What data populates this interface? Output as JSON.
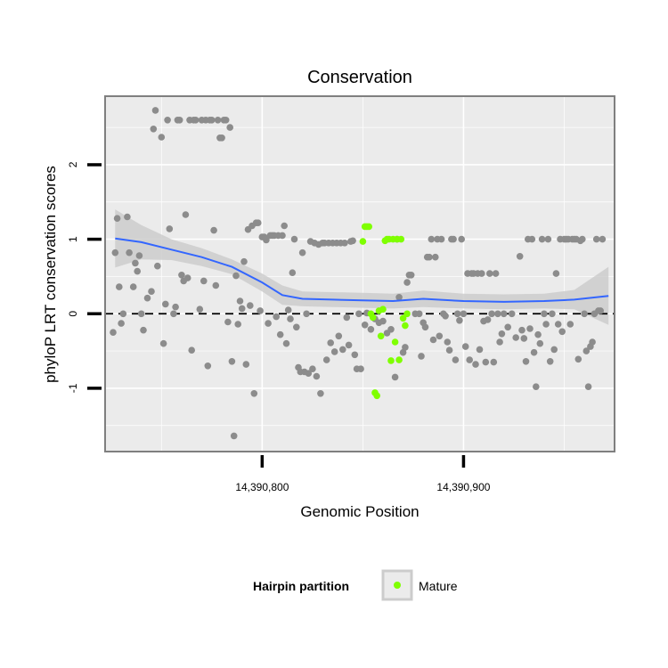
{
  "chart_data": {
    "type": "scatter",
    "title": "Conservation",
    "xlabel": "Genomic Position",
    "ylabel": "phyloP LRT conservation scores",
    "xlim": [
      14390722,
      14390975
    ],
    "ylim": [
      -1.85,
      2.92
    ],
    "x_ticks": [
      {
        "value": 14390800,
        "label": "14,390,800"
      },
      {
        "value": 14390900,
        "label": "14,390,900"
      }
    ],
    "y_ticks": [
      {
        "value": -1,
        "label": "-1"
      },
      {
        "value": 0,
        "label": "0"
      },
      {
        "value": 1,
        "label": "1"
      },
      {
        "value": 2,
        "label": "2"
      }
    ],
    "grid": true,
    "reference_line": {
      "y": 0,
      "style": "dashed"
    },
    "colors": {
      "panel_background": "#ebebeb",
      "grid": "#ffffff",
      "panel_border": "#7f7f7f",
      "other_points": "#8c8c8c",
      "mature_points": "#7fff00",
      "smooth_line": "#3366ff",
      "confidence_band": "#cccccc"
    },
    "legend": {
      "title": "Hairpin partition",
      "position": "bottom",
      "entries": [
        {
          "label": "Mature",
          "color": "#7fff00"
        }
      ]
    },
    "series": [
      {
        "color": "#8c8c8c",
        "points": [
          [
            14390733,
            1.3
          ],
          [
            14390734,
            0.82
          ],
          [
            14390736,
            0.36
          ],
          [
            14390738,
            0.57
          ],
          [
            14390740,
            0.0
          ],
          [
            14390741,
            -0.22
          ],
          [
            14390743,
            0.21
          ],
          [
            14390745,
            0.3
          ],
          [
            14390746,
            2.48
          ],
          [
            14390747,
            2.73
          ],
          [
            14390748,
            0.64
          ],
          [
            14390750,
            2.37
          ],
          [
            14390751,
            -0.4
          ],
          [
            14390752,
            0.13
          ],
          [
            14390753,
            2.6
          ],
          [
            14390754,
            1.14
          ],
          [
            14390756,
            0.0
          ],
          [
            14390757,
            0.09
          ],
          [
            14390758,
            2.6
          ],
          [
            14390759,
            2.6
          ],
          [
            14390760,
            0.52
          ],
          [
            14390761,
            0.44
          ],
          [
            14390762,
            1.33
          ],
          [
            14390763,
            0.48
          ],
          [
            14390764,
            2.6
          ],
          [
            14390765,
            -0.49
          ],
          [
            14390766,
            2.6
          ],
          [
            14390767,
            2.6
          ],
          [
            14390769,
            0.06
          ],
          [
            14390770,
            2.6
          ],
          [
            14390771,
            0.44
          ],
          [
            14390772,
            2.6
          ],
          [
            14390773,
            -0.7
          ],
          [
            14390774,
            2.6
          ],
          [
            14390775,
            2.6
          ],
          [
            14390776,
            1.12
          ],
          [
            14390777,
            0.38
          ],
          [
            14390778,
            2.6
          ],
          [
            14390779,
            2.36
          ],
          [
            14390780,
            2.36
          ],
          [
            14390781,
            2.6
          ],
          [
            14390782,
            2.6
          ],
          [
            14390783,
            -0.11
          ],
          [
            14390784,
            2.5
          ],
          [
            14390785,
            -0.64
          ],
          [
            14390786,
            -1.64
          ],
          [
            14390787,
            0.51
          ],
          [
            14390788,
            -0.14
          ],
          [
            14390789,
            0.17
          ],
          [
            14390790,
            0.07
          ],
          [
            14390791,
            0.7
          ],
          [
            14390792,
            -0.68
          ],
          [
            14390793,
            1.13
          ],
          [
            14390794,
            0.11
          ],
          [
            14390795,
            1.18
          ],
          [
            14390796,
            -1.07
          ],
          [
            14390797,
            1.22
          ],
          [
            14390798,
            1.22
          ],
          [
            14390799,
            0.04
          ],
          [
            14390800,
            1.03
          ],
          [
            14390801,
            1.03
          ],
          [
            14390802,
            0.99
          ],
          [
            14390803,
            -0.13
          ],
          [
            14390804,
            1.05
          ],
          [
            14390805,
            1.05
          ],
          [
            14390806,
            1.05
          ],
          [
            14390807,
            -0.04
          ],
          [
            14390808,
            1.05
          ],
          [
            14390809,
            -0.28
          ],
          [
            14390810,
            1.05
          ],
          [
            14390811,
            1.18
          ],
          [
            14390812,
            -0.4
          ],
          [
            14390813,
            0.05
          ],
          [
            14390814,
            -0.07
          ],
          [
            14390815,
            0.55
          ],
          [
            14390816,
            1.0
          ],
          [
            14390817,
            -0.18
          ],
          [
            14390818,
            -0.72
          ],
          [
            14390819,
            -0.78
          ],
          [
            14390820,
            0.82
          ],
          [
            14390821,
            -0.78
          ],
          [
            14390822,
            0.0
          ],
          [
            14390823,
            -0.8
          ],
          [
            14390824,
            0.97
          ],
          [
            14390825,
            -0.74
          ],
          [
            14390826,
            0.95
          ],
          [
            14390827,
            -0.84
          ],
          [
            14390828,
            0.93
          ],
          [
            14390829,
            -1.07
          ],
          [
            14390830,
            0.95
          ],
          [
            14390831,
            0.95
          ],
          [
            14390832,
            -0.62
          ],
          [
            14390833,
            0.95
          ],
          [
            14390834,
            -0.39
          ],
          [
            14390835,
            0.95
          ],
          [
            14390836,
            -0.51
          ],
          [
            14390837,
            0.95
          ],
          [
            14390838,
            -0.3
          ],
          [
            14390839,
            0.95
          ],
          [
            14390840,
            -0.48
          ],
          [
            14390841,
            0.95
          ],
          [
            14390842,
            -0.05
          ],
          [
            14390843,
            -0.42
          ],
          [
            14390844,
            0.97
          ],
          [
            14390845,
            0.98
          ],
          [
            14390846,
            -0.55
          ],
          [
            14390847,
            -0.74
          ],
          [
            14390848,
            0.0
          ],
          [
            14390849,
            -0.74
          ],
          [
            14390851,
            -0.15
          ],
          [
            14390852,
            0.01
          ],
          [
            14390854,
            -0.21
          ],
          [
            14390856,
            -0.07
          ],
          [
            14390858,
            -0.12
          ],
          [
            14390860,
            -0.1
          ],
          [
            14390862,
            -0.26
          ],
          [
            14390864,
            -0.21
          ],
          [
            14390866,
            -0.85
          ],
          [
            14390867,
            1.0
          ],
          [
            14390868,
            0.22
          ],
          [
            14390870,
            -0.52
          ],
          [
            14390871,
            -0.45
          ],
          [
            14390872,
            0.42
          ],
          [
            14390873,
            0.52
          ],
          [
            14390874,
            0.52
          ],
          [
            14390876,
            0.0
          ],
          [
            14390878,
            0.0
          ],
          [
            14390879,
            -0.57
          ],
          [
            14390880,
            -0.12
          ],
          [
            14390881,
            -0.18
          ],
          [
            14390882,
            0.76
          ],
          [
            14390883,
            0.76
          ],
          [
            14390884,
            1.0
          ],
          [
            14390885,
            -0.35
          ],
          [
            14390886,
            0.76
          ],
          [
            14390887,
            1.0
          ],
          [
            14390888,
            -0.3
          ],
          [
            14390889,
            1.0
          ],
          [
            14390890,
            0.0
          ],
          [
            14390891,
            -0.03
          ],
          [
            14390892,
            -0.38
          ],
          [
            14390893,
            -0.49
          ],
          [
            14390894,
            1.0
          ],
          [
            14390895,
            1.0
          ],
          [
            14390896,
            -0.62
          ],
          [
            14390897,
            0.0
          ],
          [
            14390898,
            -0.09
          ],
          [
            14390899,
            1.0
          ],
          [
            14390900,
            0.0
          ],
          [
            14390901,
            -0.44
          ],
          [
            14390902,
            0.54
          ],
          [
            14390903,
            -0.62
          ],
          [
            14390904,
            0.54
          ],
          [
            14390905,
            0.54
          ],
          [
            14390906,
            -0.68
          ],
          [
            14390907,
            0.54
          ],
          [
            14390908,
            -0.48
          ],
          [
            14390909,
            0.54
          ],
          [
            14390910,
            -0.1
          ],
          [
            14390911,
            -0.65
          ],
          [
            14390912,
            -0.08
          ],
          [
            14390913,
            0.54
          ],
          [
            14390914,
            0.0
          ],
          [
            14390915,
            -0.65
          ],
          [
            14390916,
            0.54
          ],
          [
            14390917,
            0.0
          ],
          [
            14390918,
            -0.38
          ],
          [
            14390919,
            -0.27
          ],
          [
            14390920,
            0.0
          ],
          [
            14390922,
            -0.18
          ],
          [
            14390924,
            0.0
          ],
          [
            14390926,
            -0.32
          ],
          [
            14390928,
            0.77
          ],
          [
            14390929,
            -0.22
          ],
          [
            14390930,
            -0.33
          ],
          [
            14390931,
            -0.64
          ],
          [
            14390932,
            1.0
          ],
          [
            14390933,
            -0.2
          ],
          [
            14390934,
            1.0
          ],
          [
            14390935,
            -0.52
          ],
          [
            14390936,
            -0.98
          ],
          [
            14390937,
            -0.28
          ],
          [
            14390938,
            -0.4
          ],
          [
            14390939,
            1.0
          ],
          [
            14390940,
            0.0
          ],
          [
            14390941,
            -0.14
          ],
          [
            14390942,
            1.0
          ],
          [
            14390943,
            -0.64
          ],
          [
            14390944,
            0.0
          ],
          [
            14390945,
            -0.48
          ],
          [
            14390946,
            0.54
          ],
          [
            14390947,
            -0.14
          ],
          [
            14390948,
            1.0
          ],
          [
            14390949,
            -0.24
          ],
          [
            14390950,
            1.0
          ],
          [
            14390951,
            1.0
          ],
          [
            14390952,
            1.0
          ],
          [
            14390953,
            -0.14
          ],
          [
            14390954,
            1.0
          ],
          [
            14390955,
            1.0
          ],
          [
            14390956,
            1.0
          ],
          [
            14390957,
            -0.61
          ],
          [
            14390958,
            0.98
          ],
          [
            14390959,
            1.0
          ],
          [
            14390960,
            0.0
          ],
          [
            14390961,
            -0.5
          ],
          [
            14390962,
            -0.98
          ],
          [
            14390963,
            -0.44
          ],
          [
            14390964,
            -0.38
          ],
          [
            14390965,
            0.0
          ],
          [
            14390966,
            1.0
          ],
          [
            14390967,
            0.04
          ],
          [
            14390968,
            0.04
          ],
          [
            14390969,
            1.0
          ],
          [
            14390726,
            -0.25
          ],
          [
            14390727,
            0.82
          ],
          [
            14390728,
            1.28
          ],
          [
            14390729,
            0.36
          ],
          [
            14390730,
            -0.13
          ],
          [
            14390731,
            0.0
          ],
          [
            14390737,
            0.68
          ],
          [
            14390739,
            0.78
          ]
        ]
      },
      {
        "name": "Mature",
        "color": "#7fff00",
        "points": [
          [
            14390850,
            0.97
          ],
          [
            14390851,
            1.17
          ],
          [
            14390852,
            1.17
          ],
          [
            14390853,
            1.17
          ],
          [
            14390854,
            0.0
          ],
          [
            14390855,
            -0.05
          ],
          [
            14390856,
            -1.06
          ],
          [
            14390857,
            -1.1
          ],
          [
            14390858,
            0.04
          ],
          [
            14390859,
            -0.3
          ],
          [
            14390860,
            0.06
          ],
          [
            14390861,
            0.98
          ],
          [
            14390862,
            1.0
          ],
          [
            14390863,
            1.0
          ],
          [
            14390864,
            -0.63
          ],
          [
            14390865,
            1.0
          ],
          [
            14390866,
            -0.38
          ],
          [
            14390867,
            1.0
          ],
          [
            14390868,
            -0.62
          ],
          [
            14390869,
            1.0
          ],
          [
            14390870,
            -0.06
          ],
          [
            14390871,
            -0.16
          ],
          [
            14390872,
            0.0
          ]
        ]
      }
    ],
    "smooth": {
      "type": "loess",
      "x": [
        14390727,
        14390740,
        14390755,
        14390770,
        14390785,
        14390800,
        14390810,
        14390820,
        14390835,
        14390850,
        14390865,
        14390880,
        14390900,
        14390920,
        14390940,
        14390955,
        14390972
      ],
      "y": [
        1.01,
        0.96,
        0.86,
        0.76,
        0.63,
        0.42,
        0.25,
        0.2,
        0.19,
        0.18,
        0.17,
        0.2,
        0.17,
        0.16,
        0.17,
        0.19,
        0.24
      ],
      "lower": [
        0.62,
        0.73,
        0.72,
        0.64,
        0.53,
        0.3,
        0.12,
        0.1,
        0.09,
        0.08,
        0.07,
        0.09,
        0.07,
        0.06,
        0.07,
        0.06,
        -0.15
      ],
      "upper": [
        1.4,
        1.19,
        1.0,
        0.88,
        0.73,
        0.54,
        0.38,
        0.3,
        0.29,
        0.28,
        0.27,
        0.31,
        0.27,
        0.26,
        0.27,
        0.32,
        0.63
      ]
    }
  }
}
